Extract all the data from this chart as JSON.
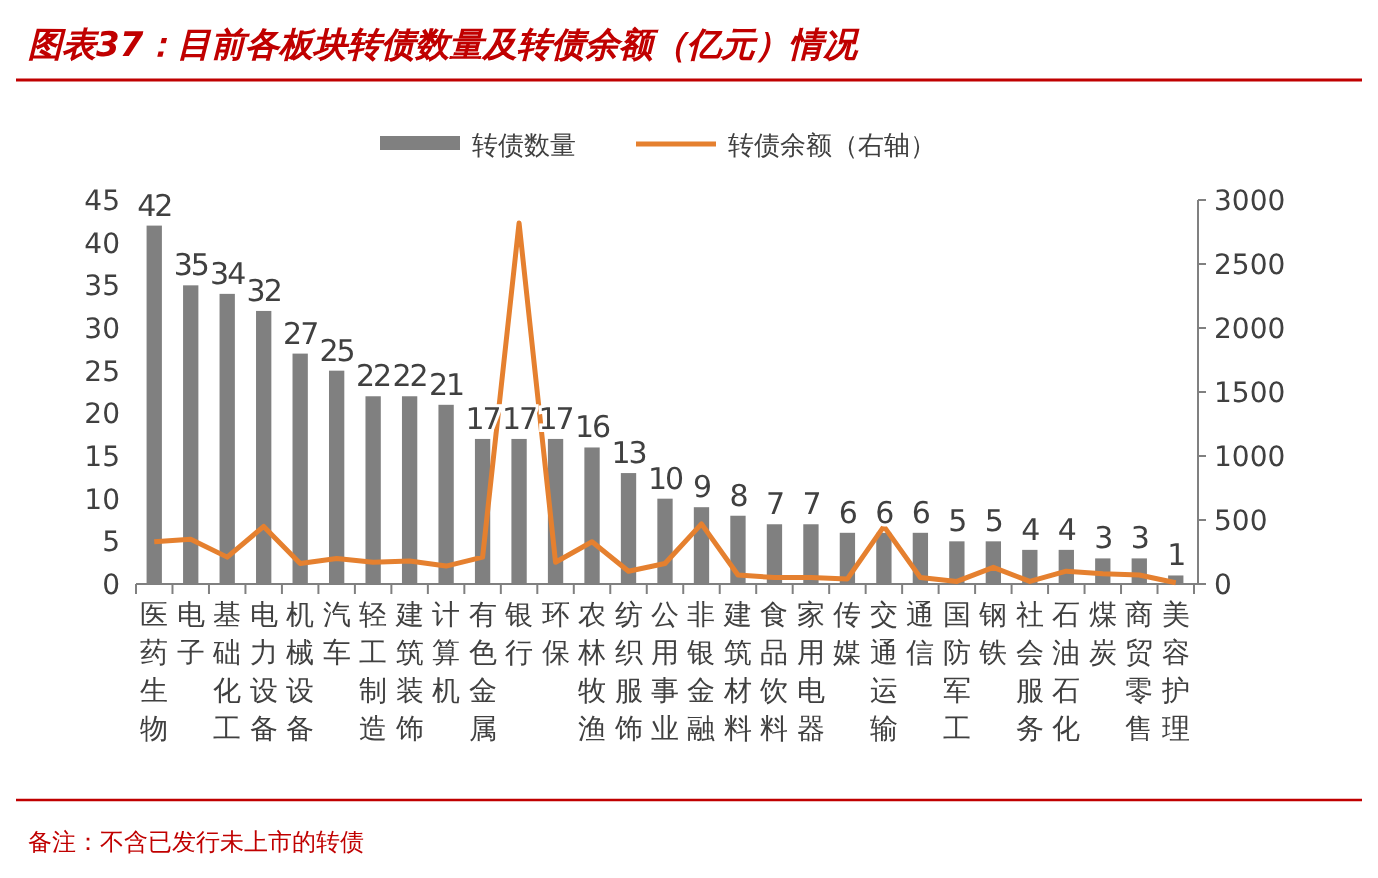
{
  "chart_data": {
    "type": "bar",
    "title": "图表37：目前各板块转债数量及转债余额（亿元）情况",
    "categories": [
      "医药生物",
      "电子",
      "基础化工",
      "电力设备",
      "机械设备",
      "汽车",
      "轻工制造",
      "建筑装饰",
      "计算机",
      "有色金属",
      "银行",
      "环保",
      "农林牧渔",
      "纺织服饰",
      "公用事业",
      "非银金融",
      "建筑材料",
      "食品饮料",
      "家用电器",
      "传媒",
      "交通运输",
      "通信",
      "国防军工",
      "钢铁",
      "社会服务",
      "石油石化",
      "煤炭",
      "商贸零售",
      "美容护理"
    ],
    "series": [
      {
        "name": "转债数量",
        "color": "#808080",
        "values": [
          42,
          35,
          34,
          32,
          27,
          25,
          22,
          22,
          21,
          17,
          17,
          17,
          16,
          13,
          10,
          9,
          8,
          7,
          7,
          6,
          6,
          6,
          5,
          5,
          4,
          4,
          3,
          3,
          1
        ],
        "value_labels": [
          "42",
          "35",
          "34",
          "32",
          "27",
          "25",
          "22",
          "22",
          "21",
          "17",
          "17",
          "17",
          "16",
          "13",
          "10",
          "9",
          "8",
          "7",
          "7",
          "6",
          "6",
          "6",
          "5",
          "5",
          "4",
          "4",
          "3",
          "3",
          "1"
        ]
      },
      {
        "name": "转债余额（右轴）",
        "type": "line",
        "axis": "y2",
        "color": "#e5802f",
        "values": [
          330,
          350,
          210,
          450,
          160,
          200,
          170,
          180,
          140,
          210,
          2820,
          170,
          330,
          100,
          160,
          470,
          70,
          50,
          50,
          40,
          450,
          50,
          20,
          130,
          20,
          100,
          80,
          70,
          10
        ]
      }
    ],
    "ylim": [
      0,
      45
    ],
    "yticks": [
      0,
      5,
      10,
      15,
      20,
      25,
      30,
      35,
      40,
      45
    ],
    "y2lim": [
      0,
      3000
    ],
    "y2ticks": [
      0,
      500,
      1000,
      1500,
      2000,
      2500,
      3000
    ],
    "legend": "top",
    "annotations": [
      "备注：不含已发行未上市的转债"
    ]
  }
}
